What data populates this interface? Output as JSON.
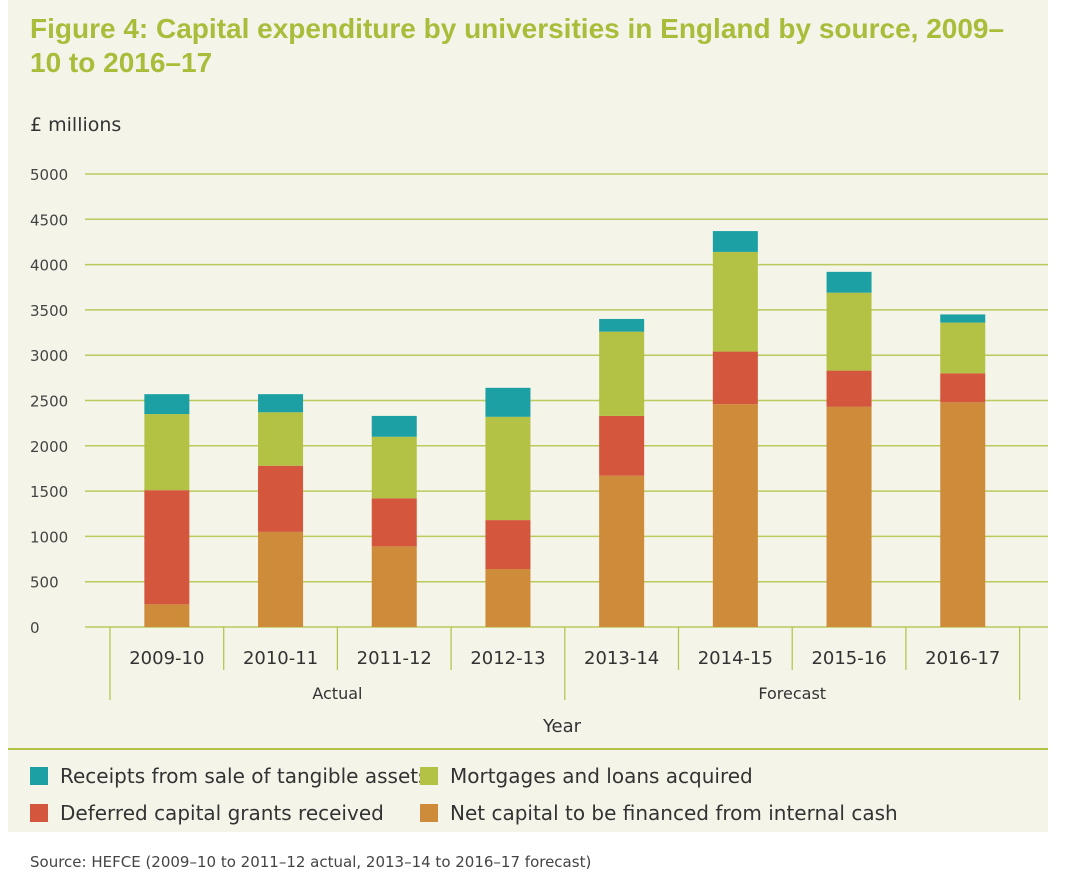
{
  "chart_data": {
    "type": "bar",
    "stacked": true,
    "title": "Figure 4: Capital expenditure by universities in England by source, 2009–10 to 2016–17",
    "ylabel": "£ millions",
    "xlabel": "Year",
    "ylim": [
      0,
      5000
    ],
    "yticks": [
      0,
      500,
      1000,
      1500,
      2000,
      2500,
      3000,
      3500,
      4000,
      4500,
      5000
    ],
    "grid": true,
    "legend_position": "bottom",
    "categories": [
      "2009-10",
      "2010-11",
      "2011-12",
      "2012-13",
      "2013-14",
      "2014-15",
      "2015-16",
      "2016-17"
    ],
    "groups": [
      {
        "label": "Actual",
        "span": 4
      },
      {
        "label": "Forecast",
        "span": 4
      }
    ],
    "series": [
      {
        "name": "Net capital to be financed from internal cash",
        "color": "#ce8b3a",
        "values": [
          250,
          1050,
          890,
          640,
          1670,
          2460,
          2430,
          2480
        ]
      },
      {
        "name": "Deferred capital grants received",
        "color": "#d4563c",
        "values": [
          1260,
          730,
          530,
          540,
          660,
          580,
          400,
          320
        ]
      },
      {
        "name": "Mortgages and loans acquired",
        "color": "#b3c244",
        "values": [
          840,
          590,
          680,
          1140,
          930,
          1100,
          860,
          560
        ]
      },
      {
        "name": "Receipts from sale of tangible assets",
        "color": "#1ca0a4",
        "values": [
          220,
          200,
          230,
          320,
          140,
          230,
          230,
          90
        ]
      }
    ],
    "legend_order": [
      3,
      2,
      1,
      0
    ]
  },
  "source": "Source: HEFCE (2009–10 to 2011–12 actual, 2013–14 to 2016–17 forecast)",
  "colors": {
    "background": "#f4f4e8",
    "grid": "#b3c244",
    "title": "#a9bd3b"
  }
}
